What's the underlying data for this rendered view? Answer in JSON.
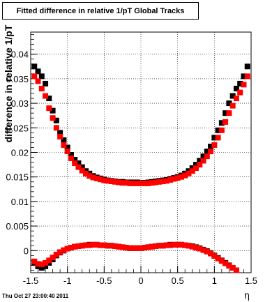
{
  "chart_data": {
    "type": "scatter",
    "title": "Fitted difference in relative 1/pT  Global Tracks",
    "xlabel": "η",
    "ylabel": "difference in relative 1/pT",
    "xlim": [
      -1.5,
      1.5
    ],
    "ylim": [
      -0.0045,
      0.0445
    ],
    "x_ticks": [
      -1.5,
      -1,
      -0.5,
      0,
      0.5,
      1,
      1.5
    ],
    "x_tick_labels": [
      "-1.5",
      "-1",
      "-0.5",
      "0",
      "0.5",
      "1",
      "1.5"
    ],
    "y_ticks": [
      0,
      0.005,
      0.01,
      0.015,
      0.02,
      0.025,
      0.03,
      0.035,
      0.04
    ],
    "y_tick_labels": [
      "0",
      "0.005",
      "0.01",
      "0.015",
      "0.02",
      "0.025",
      "0.03",
      "0.035",
      "0.04"
    ],
    "grid": true,
    "legend": "none",
    "series": [
      {
        "color": "#000000",
        "x": [
          -1.45,
          -1.4,
          -1.35,
          -1.3,
          -1.25,
          -1.2,
          -1.15,
          -1.1,
          -1.05,
          -1.0,
          -0.95,
          -0.9,
          -0.85,
          -0.8,
          -0.75,
          -0.7,
          -0.65,
          -0.6,
          -0.55,
          -0.5,
          -0.45,
          -0.4,
          -0.35,
          -0.3,
          -0.25,
          -0.2,
          -0.15,
          -0.1,
          -0.05,
          0.0,
          0.05,
          0.1,
          0.15,
          0.2,
          0.25,
          0.3,
          0.35,
          0.4,
          0.45,
          0.5,
          0.55,
          0.6,
          0.65,
          0.7,
          0.75,
          0.8,
          0.85,
          0.9,
          0.95,
          1.0,
          1.05,
          1.1,
          1.15,
          1.2,
          1.25,
          1.3,
          1.35,
          1.4,
          1.45
        ],
        "values": [
          0.0375,
          0.0365,
          0.0355,
          0.034,
          0.031,
          0.0285,
          0.0265,
          0.024,
          0.0225,
          0.021,
          0.0195,
          0.0185,
          0.0178,
          0.017,
          0.0162,
          0.0157,
          0.0152,
          0.0149,
          0.0147,
          0.0145,
          0.0143,
          0.0142,
          0.0141,
          0.014,
          0.014,
          0.0139,
          0.0139,
          0.0139,
          0.0139,
          0.0138,
          0.0138,
          0.0139,
          0.014,
          0.0141,
          0.0142,
          0.0143,
          0.0144,
          0.0146,
          0.0148,
          0.015,
          0.0153,
          0.0157,
          0.0162,
          0.0168,
          0.0175,
          0.0183,
          0.0192,
          0.0202,
          0.0212,
          0.023,
          0.0245,
          0.026,
          0.028,
          0.03,
          0.0315,
          0.033,
          0.034,
          0.0355,
          0.0375
        ]
      },
      {
        "color": "#ff0000",
        "x": [
          -1.45,
          -1.4,
          -1.35,
          -1.3,
          -1.25,
          -1.2,
          -1.15,
          -1.1,
          -1.05,
          -1.0,
          -0.95,
          -0.9,
          -0.85,
          -0.8,
          -0.75,
          -0.7,
          -0.65,
          -0.6,
          -0.55,
          -0.5,
          -0.45,
          -0.4,
          -0.35,
          -0.3,
          -0.25,
          -0.2,
          -0.15,
          -0.1,
          -0.05,
          0.0,
          0.05,
          0.1,
          0.15,
          0.2,
          0.25,
          0.3,
          0.35,
          0.4,
          0.45,
          0.5,
          0.55,
          0.6,
          0.65,
          0.7,
          0.75,
          0.8,
          0.85,
          0.9,
          0.95,
          1.0,
          1.05,
          1.1,
          1.15,
          1.2,
          1.25,
          1.3,
          1.35,
          1.4,
          1.45
        ],
        "values": [
          0.0355,
          0.0345,
          0.033,
          0.0315,
          0.029,
          0.027,
          0.025,
          0.0232,
          0.0215,
          0.0202,
          0.0188,
          0.0178,
          0.017,
          0.0163,
          0.0157,
          0.0152,
          0.0149,
          0.0147,
          0.0145,
          0.0143,
          0.0142,
          0.0141,
          0.014,
          0.0139,
          0.0138,
          0.0138,
          0.0137,
          0.0137,
          0.0137,
          0.0137,
          0.0137,
          0.0137,
          0.0138,
          0.0139,
          0.014,
          0.0141,
          0.0142,
          0.0144,
          0.0146,
          0.0148,
          0.015,
          0.0153,
          0.0157,
          0.0162,
          0.0168,
          0.0175,
          0.0183,
          0.0192,
          0.0202,
          0.0215,
          0.023,
          0.0245,
          0.0262,
          0.028,
          0.0295,
          0.031,
          0.0322,
          0.0338,
          0.0355
        ]
      },
      {
        "color": "#000000",
        "x": [
          -1.45,
          -1.4,
          -1.35,
          -1.3,
          -1.25,
          -1.2,
          -1.15,
          -1.1,
          -1.05,
          -1.0,
          -0.95,
          -0.9,
          -0.85,
          -0.8,
          -0.75,
          -0.7,
          -0.65,
          -0.6,
          -0.55,
          -0.5,
          -0.45,
          -0.4,
          -0.35,
          -0.3,
          -0.25,
          -0.2,
          -0.15,
          -0.1,
          -0.05,
          0.0,
          0.05,
          0.1,
          0.15,
          0.2,
          0.25,
          0.3,
          0.35,
          0.4,
          0.45,
          0.5,
          0.55,
          0.6,
          0.65,
          0.7,
          0.75,
          0.8,
          0.85,
          0.9,
          0.95,
          1.0,
          1.05,
          1.1,
          1.15,
          1.2,
          1.25,
          1.3
        ],
        "values": [
          -0.0025,
          -0.0032,
          -0.0035,
          -0.0032,
          -0.0025,
          -0.0018,
          -0.001,
          -0.0004,
          0.0,
          0.0004,
          0.0006,
          0.0008,
          0.0009,
          0.001,
          0.0011,
          0.0012,
          0.0012,
          0.0012,
          0.0011,
          0.0011,
          0.001,
          0.001,
          0.0009,
          0.0008,
          0.0007,
          0.0006,
          0.0005,
          0.0005,
          0.0005,
          0.0005,
          0.0006,
          0.0007,
          0.0008,
          0.0009,
          0.001,
          0.001,
          0.0011,
          0.0012,
          0.0012,
          0.0012,
          0.0012,
          0.0011,
          0.001,
          0.0009,
          0.0007,
          0.0005,
          0.0002,
          -0.0001,
          -0.0005,
          -0.001,
          -0.0015,
          -0.002,
          -0.0025,
          -0.003,
          -0.0035,
          -0.004
        ]
      },
      {
        "color": "#ff0000",
        "x": [
          -1.45,
          -1.4,
          -1.35,
          -1.3,
          -1.25,
          -1.2,
          -1.15,
          -1.1,
          -1.05,
          -1.0,
          -0.95,
          -0.9,
          -0.85,
          -0.8,
          -0.75,
          -0.7,
          -0.65,
          -0.6,
          -0.55,
          -0.5,
          -0.45,
          -0.4,
          -0.35,
          -0.3,
          -0.25,
          -0.2,
          -0.15,
          -0.1,
          -0.05,
          0.0,
          0.05,
          0.1,
          0.15,
          0.2,
          0.25,
          0.3,
          0.35,
          0.4,
          0.45,
          0.5,
          0.55,
          0.6,
          0.65,
          0.7,
          0.75,
          0.8,
          0.85,
          0.9,
          0.95,
          1.0,
          1.05,
          1.1,
          1.15,
          1.2,
          1.25,
          1.3
        ],
        "values": [
          -0.0022,
          -0.0027,
          -0.0028,
          -0.0025,
          -0.002,
          -0.0014,
          -0.0008,
          -0.0003,
          0.0001,
          0.0004,
          0.0006,
          0.0008,
          0.0009,
          0.001,
          0.0011,
          0.0011,
          0.0012,
          0.0012,
          0.0011,
          0.0011,
          0.001,
          0.001,
          0.0009,
          0.0008,
          0.0007,
          0.0006,
          0.0005,
          0.0005,
          0.0005,
          0.0005,
          0.0006,
          0.0007,
          0.0008,
          0.0009,
          0.001,
          0.001,
          0.0011,
          0.0011,
          0.0012,
          0.0012,
          0.0012,
          0.0011,
          0.001,
          0.0008,
          0.0006,
          0.0004,
          0.0001,
          -0.0002,
          -0.0006,
          -0.0011,
          -0.0016,
          -0.0021,
          -0.0026,
          -0.0031,
          -0.0035,
          -0.004
        ]
      }
    ]
  },
  "footer": {
    "timestamp": "Thu Oct 27 23:00:40 2011"
  }
}
